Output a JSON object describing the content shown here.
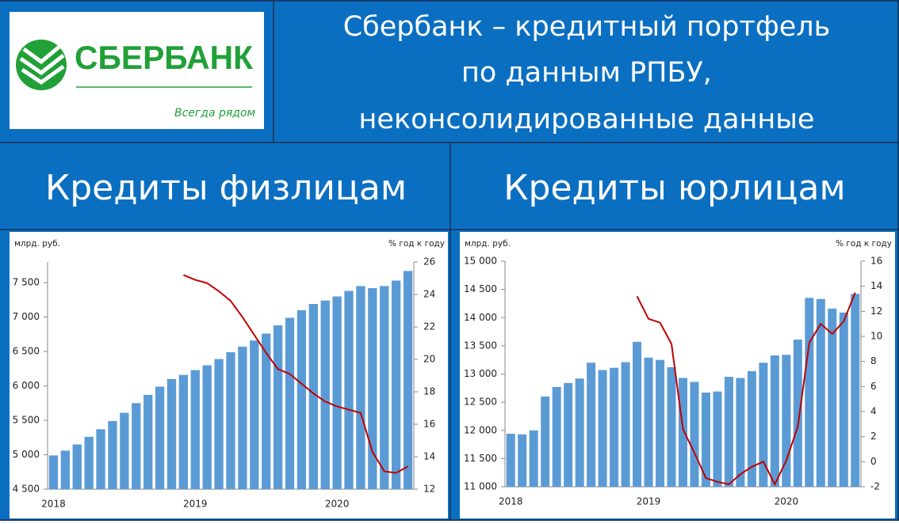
{
  "logo": {
    "name": "СБЕРБАНК",
    "slogan": "Всегда рядом"
  },
  "title_lines": [
    "Сбербанк – кредитный портфель",
    "по данным РПБУ,",
    "неконсолидированные данные"
  ],
  "chart_data": [
    {
      "type": "bar",
      "title": "Кредиты физлицам",
      "ylabel": "млрд. руб.",
      "y2label": "% год к году",
      "categories": [
        "2018",
        null,
        null,
        null,
        null,
        null,
        null,
        null,
        null,
        null,
        null,
        null,
        "2019",
        null,
        null,
        null,
        null,
        null,
        null,
        null,
        null,
        null,
        null,
        null,
        "2020",
        null,
        null,
        null,
        null,
        null,
        null
      ],
      "ylim": [
        4500,
        7800
      ],
      "yticks": [
        {
          "value": 4500,
          "label": "4 500"
        },
        {
          "value": 5000,
          "label": "5 000"
        },
        {
          "value": 5500,
          "label": "5 500"
        },
        {
          "value": 6000,
          "label": "6 000"
        },
        {
          "value": 6500,
          "label": "6 500"
        },
        {
          "value": 7000,
          "label": "7 000"
        },
        {
          "value": 7500,
          "label": "7 500"
        }
      ],
      "y2lim": [
        12,
        26
      ],
      "y2ticks": [
        12,
        14,
        16,
        18,
        20,
        22,
        24,
        26
      ],
      "series": [
        {
          "type": "bar",
          "color": "#5b9bd5",
          "values": [
            4990,
            5060,
            5150,
            5260,
            5370,
            5490,
            5610,
            5750,
            5870,
            5990,
            6100,
            6160,
            6230,
            6300,
            6390,
            6490,
            6570,
            6660,
            6760,
            6880,
            6990,
            7100,
            7190,
            7240,
            7300,
            7380,
            7450,
            7420,
            7450,
            7530,
            7670
          ]
        },
        {
          "type": "line",
          "axis": "y2",
          "color": "#c00000",
          "values": [
            null,
            null,
            null,
            null,
            null,
            null,
            null,
            null,
            null,
            null,
            null,
            25.2,
            24.9,
            24.7,
            24.2,
            23.6,
            22.6,
            21.5,
            20.4,
            19.4,
            19.1,
            18.5,
            17.9,
            17.4,
            17.1,
            16.9,
            16.7,
            14.3,
            13.1,
            13.0,
            13.4
          ]
        }
      ]
    },
    {
      "type": "bar",
      "title": "Кредиты юрлицам",
      "ylabel": "млрд. руб.",
      "y2label": "% год к году",
      "categories": [
        "2018",
        null,
        null,
        null,
        null,
        null,
        null,
        null,
        null,
        null,
        null,
        null,
        "2019",
        null,
        null,
        null,
        null,
        null,
        null,
        null,
        null,
        null,
        null,
        null,
        "2020",
        null,
        null,
        null,
        null,
        null,
        null
      ],
      "ylim": [
        11000,
        15000
      ],
      "yticks": [
        {
          "value": 11000,
          "label": "11 000"
        },
        {
          "value": 11500,
          "label": "11 500"
        },
        {
          "value": 12000,
          "label": "12 000"
        },
        {
          "value": 12500,
          "label": "12 500"
        },
        {
          "value": 13000,
          "label": "13 000"
        },
        {
          "value": 13500,
          "label": "13 500"
        },
        {
          "value": 14000,
          "label": "14 000"
        },
        {
          "value": 14500,
          "label": "14 500"
        },
        {
          "value": 15000,
          "label": "15 000"
        }
      ],
      "y2lim": [
        -2,
        16
      ],
      "y2ticks": [
        -2,
        0,
        2,
        4,
        6,
        8,
        10,
        12,
        14,
        16
      ],
      "series": [
        {
          "type": "bar",
          "color": "#5b9bd5",
          "values": [
            11940,
            11930,
            12000,
            12600,
            12770,
            12840,
            12920,
            13200,
            13070,
            13110,
            13210,
            13570,
            13290,
            13250,
            13120,
            12930,
            12860,
            12670,
            12690,
            12950,
            12930,
            13050,
            13200,
            13330,
            13340,
            13610,
            14350,
            14330,
            14160,
            14090,
            14420
          ]
        },
        {
          "type": "line",
          "axis": "y2",
          "color": "#c00000",
          "values": [
            null,
            null,
            null,
            null,
            null,
            null,
            null,
            null,
            null,
            null,
            null,
            13.2,
            11.4,
            11.1,
            9.4,
            2.6,
            0.7,
            -1.3,
            -1.6,
            -1.8,
            -1.0,
            -0.4,
            0.0,
            -1.8,
            0.1,
            2.8,
            9.5,
            11.0,
            10.2,
            11.2,
            13.5
          ]
        }
      ]
    }
  ]
}
